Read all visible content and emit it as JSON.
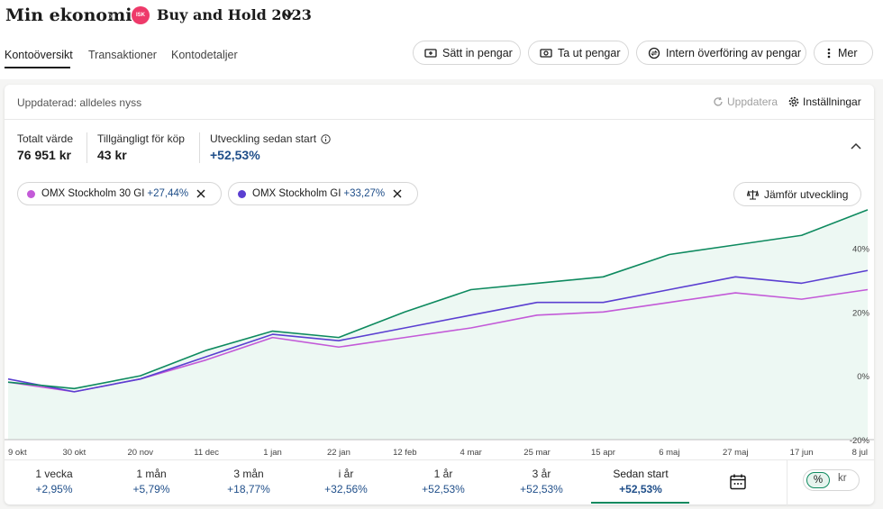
{
  "breadcrumb": {
    "root": "Min ekonomi",
    "account_badge": "ISK",
    "account_name": "Buy and Hold 2023"
  },
  "tabs": [
    "Kontoöversikt",
    "Transaktioner",
    "Kontodetaljer"
  ],
  "actions": {
    "deposit": "Sätt in pengar",
    "withdraw": "Ta ut pengar",
    "transfer": "Intern överföring av pengar",
    "more": "Mer"
  },
  "status": {
    "updated": "Uppdaterad: alldeles nyss",
    "refresh": "Uppdatera",
    "settings": "Inställningar"
  },
  "stats": {
    "total_label": "Totalt värde",
    "total_value": "76 951 kr",
    "available_label": "Tillgängligt för köp",
    "available_value": "43 kr",
    "growth_label": "Utveckling sedan start",
    "growth_value": "+52,53%"
  },
  "comparisons": [
    {
      "name": "OMX Stockholm 30 GI",
      "change": "+27,44%",
      "color": "#c35ad8"
    },
    {
      "name": "OMX Stockholm GI",
      "change": "+33,27%",
      "color": "#5b3fd1"
    }
  ],
  "compare_button": "Jämför utveckling",
  "colors": {
    "account": "#0e8a5f",
    "omxs30": "#c35ad8",
    "omxsgi": "#5b3fd1",
    "positive": "#1f4e89"
  },
  "chart_data": {
    "type": "line",
    "x": [
      "9 okt",
      "30 okt",
      "20 nov",
      "11 dec",
      "1 jan",
      "22 jan",
      "12 feb",
      "4 mar",
      "25 mar",
      "15 apr",
      "6 maj",
      "27 maj",
      "17 jun",
      "8 jul"
    ],
    "x_tick_labels": [
      "9 okt",
      "30 okt",
      "20 nov",
      "11 dec",
      "1 jan",
      "22 jan",
      "12 feb",
      "4 mar",
      "25 mar",
      "15 apr",
      "6 maj",
      "27 maj",
      "17 jun",
      "8 jul"
    ],
    "y_tick_labels": [
      "40%",
      "20%",
      "0%",
      "-20%"
    ],
    "y_ticks": [
      40,
      20,
      0,
      -20
    ],
    "ylim": [
      -20,
      50
    ],
    "series": [
      {
        "name": "Buy and Hold 2023",
        "values": [
          -2,
          -4,
          0,
          8,
          14,
          12,
          20,
          27,
          29,
          31,
          38,
          41,
          44,
          52
        ]
      },
      {
        "name": "OMX Stockholm 30 GI",
        "values": [
          -2,
          -5,
          -1,
          5,
          12,
          9,
          12,
          15,
          19,
          20,
          23,
          26,
          24,
          27
        ]
      },
      {
        "name": "OMX Stockholm GI",
        "values": [
          -1,
          -5,
          -1,
          6,
          13,
          11,
          15,
          19,
          23,
          23,
          27,
          31,
          29,
          33
        ]
      }
    ]
  },
  "periods": [
    {
      "label": "1 vecka",
      "value": "+2,95%"
    },
    {
      "label": "1 mån",
      "value": "+5,79%"
    },
    {
      "label": "3 mån",
      "value": "+18,77%"
    },
    {
      "label": "i år",
      "value": "+32,56%"
    },
    {
      "label": "1 år",
      "value": "+52,53%"
    },
    {
      "label": "3 år",
      "value": "+52,53%"
    },
    {
      "label": "Sedan start",
      "value": "+52,53%"
    }
  ],
  "unit_toggle": {
    "percent": "%",
    "currency": "kr"
  }
}
